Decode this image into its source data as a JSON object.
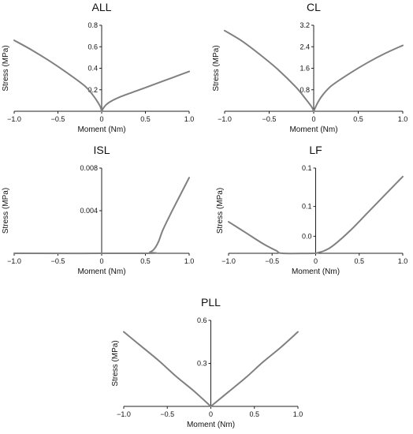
{
  "chart_data": [
    {
      "type": "line",
      "title": "ALL",
      "xlabel": "Moment (Nm)",
      "ylabel": "Stress (MPa)",
      "xlim": [
        -1.0,
        1.0
      ],
      "ylim": [
        0,
        0.8
      ],
      "xticks": [
        "−1.0",
        "−0.5",
        "0",
        "0.5",
        "1.0"
      ],
      "yticks": [
        "0.2",
        "0.4",
        "0.6",
        "0.8"
      ],
      "series": [
        {
          "x": [
            -1.0,
            -0.8,
            -0.6,
            -0.4,
            -0.2,
            -0.1,
            -0.02,
            0.0
          ],
          "y": [
            0.66,
            0.57,
            0.47,
            0.36,
            0.24,
            0.15,
            0.05,
            0.0
          ]
        },
        {
          "x": [
            0.0,
            0.02,
            0.05,
            0.1,
            0.2,
            0.4,
            0.6,
            0.8,
            1.0
          ],
          "y": [
            0.0,
            0.03,
            0.06,
            0.09,
            0.13,
            0.19,
            0.25,
            0.31,
            0.37
          ]
        }
      ]
    },
    {
      "type": "line",
      "title": "CL",
      "xlabel": "Moment (Nm)",
      "ylabel": "Stress (MPa)",
      "xlim": [
        -1.0,
        1.0
      ],
      "ylim": [
        0,
        3.2
      ],
      "xticks": [
        "−1.0",
        "−0.5",
        "0",
        "0.5",
        "1.0"
      ],
      "yticks": [
        "0.8",
        "1.6",
        "2.4",
        "3.2"
      ],
      "series": [
        {
          "x": [
            -1.0,
            -0.8,
            -0.6,
            -0.4,
            -0.2,
            -0.1,
            -0.02,
            0.0
          ],
          "y": [
            3.0,
            2.6,
            2.1,
            1.55,
            0.9,
            0.5,
            0.15,
            0.0
          ]
        },
        {
          "x": [
            0.0,
            0.02,
            0.05,
            0.1,
            0.2,
            0.4,
            0.6,
            0.8,
            1.0
          ],
          "y": [
            0.0,
            0.15,
            0.35,
            0.6,
            0.95,
            1.4,
            1.8,
            2.15,
            2.45
          ]
        }
      ]
    },
    {
      "type": "line",
      "title": "ISL",
      "xlabel": "Moment (Nm)",
      "ylabel": "Stress (MPa)",
      "xlim": [
        -1.0,
        1.0
      ],
      "ylim": [
        0,
        0.008
      ],
      "xticks": [
        "−1.0",
        "−0.5",
        "0",
        "0.5",
        "1.0"
      ],
      "yticks": [
        "0.004",
        "0.008"
      ],
      "series": [
        {
          "x": [
            -1.0,
            0.5,
            0.55,
            0.6,
            0.65,
            0.7,
            0.8,
            0.9,
            1.0
          ],
          "y": [
            0.0,
            0.0,
            0.0001,
            0.0004,
            0.0011,
            0.0022,
            0.0039,
            0.0055,
            0.0071
          ]
        }
      ]
    },
    {
      "type": "line",
      "title": "LF",
      "xlabel": "Moment (Nm)",
      "ylabel": "Stress (MPa)",
      "xlim": [
        -1.0,
        1.0
      ],
      "ylim": [
        0,
        0.1
      ],
      "xticks": [
        "−1.0",
        "−0.5",
        "0",
        "0.5",
        "1.0"
      ],
      "yticks": [
        "0.0",
        "0.1",
        "0.1"
      ],
      "series": [
        {
          "x": [
            -1.0,
            -0.8,
            -0.6,
            -0.45,
            -0.38,
            0.0
          ],
          "y": [
            0.037,
            0.024,
            0.011,
            0.003,
            0.0,
            0.0
          ]
        },
        {
          "x": [
            0.0,
            0.1,
            0.2,
            0.4,
            0.6,
            0.8,
            1.0
          ],
          "y": [
            0.0,
            0.003,
            0.009,
            0.027,
            0.048,
            0.069,
            0.09
          ]
        }
      ]
    },
    {
      "type": "line",
      "title": "PLL",
      "xlabel": "Moment (Nm)",
      "ylabel": "Stress (MPa)",
      "xlim": [
        -1.0,
        1.0
      ],
      "ylim": [
        0,
        0.6
      ],
      "xticks": [
        "−1.0",
        "−0.5",
        "0",
        "0.5",
        "1.0"
      ],
      "yticks": [
        "0.3",
        "0.6"
      ],
      "series": [
        {
          "x": [
            -1.0,
            -0.8,
            -0.6,
            -0.4,
            -0.2,
            0.0
          ],
          "y": [
            0.52,
            0.42,
            0.32,
            0.21,
            0.11,
            0.0
          ]
        },
        {
          "x": [
            0.0,
            0.2,
            0.4,
            0.6,
            0.8,
            1.0
          ],
          "y": [
            0.0,
            0.1,
            0.2,
            0.31,
            0.41,
            0.52
          ]
        }
      ]
    }
  ]
}
